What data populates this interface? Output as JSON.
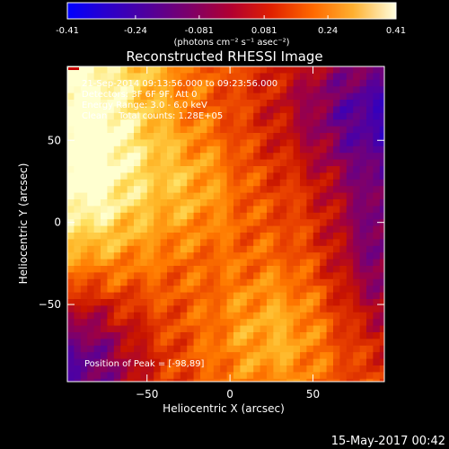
{
  "chart_data": {
    "type": "heatmap",
    "title": "Reconstructed RHESSI Image",
    "xlabel": "Heliocentric X (arcsec)",
    "ylabel": "Heliocentric Y (arcsec)",
    "xlim": [
      -98,
      93
    ],
    "ylim": [
      -97,
      95
    ],
    "x_ticks": [
      -50,
      0,
      50
    ],
    "y_ticks": [
      -50,
      0,
      50
    ],
    "colorbar": {
      "ticks": [
        "-0.41",
        "-0.24",
        "-0.081",
        "0.081",
        "0.24",
        "0.41"
      ],
      "min": -0.41,
      "max": 0.41,
      "units_label": "(photons cm⁻² s⁻¹ asec⁻²)"
    },
    "annotations": [
      "21-Sep-2014 09:13:56.000 to 09:23:56.000",
      "Detectors: 3F 6F 9F, Att 0",
      "Energy Range: 3.0 - 6.0 keV",
      "Clean    Total counts: 1.28E+05"
    ],
    "peak_label": "Position of Peak = [-98,89]",
    "peak": [
      -98,
      89
    ],
    "colormap": [
      "#0000ff",
      "#2a00c8",
      "#5000a0",
      "#7a0070",
      "#a00040",
      "#c81400",
      "#e84000",
      "#ff7800",
      "#ffb020",
      "#ffe060",
      "#ffffd0"
    ]
  },
  "footer_date": "15-May-2017 00:42"
}
